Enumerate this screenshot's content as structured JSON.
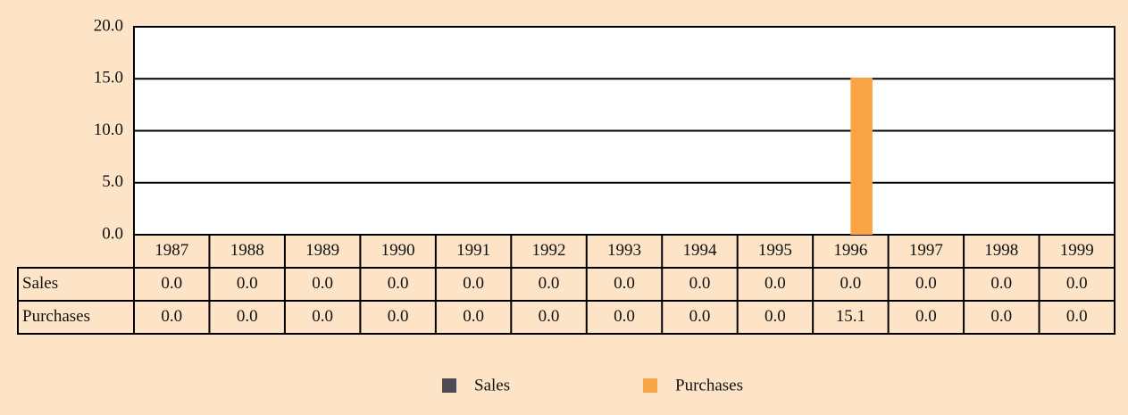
{
  "chart_data": {
    "type": "bar",
    "categories": [
      "1987",
      "1988",
      "1989",
      "1990",
      "1991",
      "1992",
      "1993",
      "1994",
      "1995",
      "1996",
      "1997",
      "1998",
      "1999"
    ],
    "series": [
      {
        "name": "Sales",
        "color": "#4b4b55",
        "values": [
          0,
          0,
          0,
          0,
          0,
          0,
          0,
          0,
          0,
          0,
          0,
          0,
          0
        ],
        "value_labels": [
          "0.0",
          "0.0",
          "0.0",
          "0.0",
          "0.0",
          "0.0",
          "0.0",
          "0.0",
          "0.0",
          "0.0",
          "0.0",
          "0.0",
          "0.0"
        ]
      },
      {
        "name": "Purchases",
        "color": "#f9a444",
        "values": [
          0,
          0,
          0,
          0,
          0,
          0,
          0,
          0,
          0,
          15.1,
          0,
          0,
          0
        ],
        "value_labels": [
          "0.0",
          "0.0",
          "0.0",
          "0.0",
          "0.0",
          "0.0",
          "0.0",
          "0.0",
          "0.0",
          "15.1",
          "0.0",
          "0.0",
          "0.0"
        ]
      }
    ],
    "ylim": [
      0,
      20
    ],
    "yticks": [
      {
        "value": 0,
        "label": "0.0"
      },
      {
        "value": 5,
        "label": "5.0"
      },
      {
        "value": 10,
        "label": "10.0"
      },
      {
        "value": 15,
        "label": "15.0"
      },
      {
        "value": 20,
        "label": "20.0"
      }
    ],
    "grid": true
  }
}
